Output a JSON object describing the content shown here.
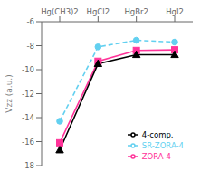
{
  "chart_data": {
    "type": "line",
    "categories": [
      "Hg(CH3)2",
      "HgCl2",
      "HgBr2",
      "HgI2"
    ],
    "series": [
      {
        "name": "SR-ZORA-4",
        "color": "#62d0f0",
        "values": [
          -14.3,
          -8.1,
          -7.55,
          -7.7
        ],
        "marker": "circle",
        "line_style": "dashed"
      },
      {
        "name": "ZORA-4",
        "color": "#ff3399",
        "values": [
          -16.1,
          -9.3,
          -8.4,
          -8.35
        ],
        "marker": "square",
        "line_style": "solid"
      },
      {
        "name": "4-comp.",
        "color": "#000000",
        "values": [
          -16.7,
          -9.5,
          -8.75,
          -8.75
        ],
        "marker": "triangle",
        "line_style": "solid"
      }
    ],
    "ylabel": "Vzz (a.u.)",
    "ylim": [
      -18,
      -6
    ],
    "yticks": [
      -18,
      -16,
      -14,
      -12,
      -10,
      -8,
      -6
    ],
    "legend": "lower right",
    "grid": false
  }
}
